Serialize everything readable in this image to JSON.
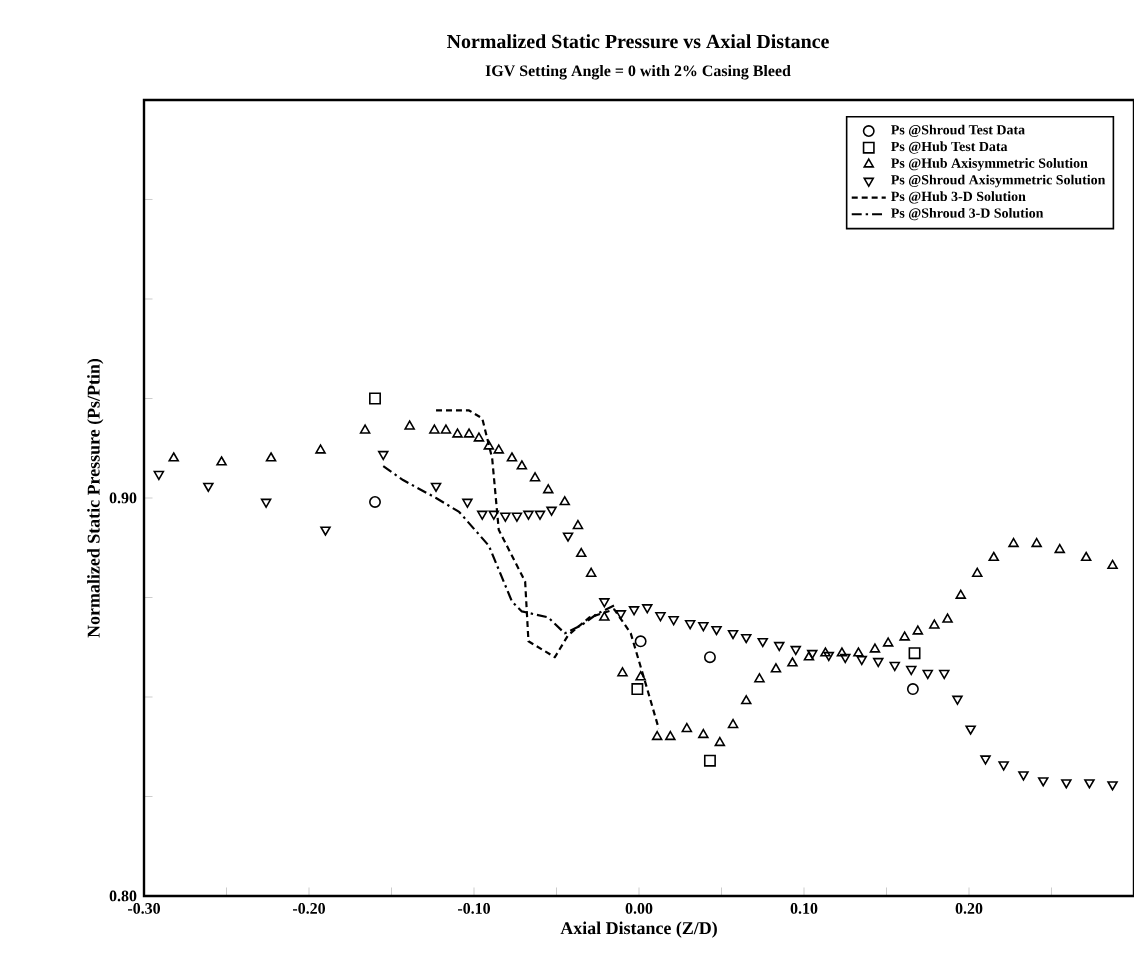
{
  "chart_data": {
    "type": "scatter",
    "title": "Normalized Static Pressure vs Axial Distance",
    "subtitle": "IGV Setting Angle = 0 with 2% Casing Bleed",
    "xlabel": "Axial Distance (Z/D)",
    "ylabel": "Normalized Static Pressure (Ps/Ptin)",
    "xlim": [
      -0.3,
      0.3
    ],
    "ylim": [
      0.8,
      1.0
    ],
    "xticks": [
      {
        "value": -0.3,
        "label": "-0.30"
      },
      {
        "value": -0.25,
        "label": null
      },
      {
        "value": -0.2,
        "label": "-0.20"
      },
      {
        "value": -0.15,
        "label": null
      },
      {
        "value": -0.1,
        "label": "-0.10"
      },
      {
        "value": -0.05,
        "label": null
      },
      {
        "value": 0.0,
        "label": "0.00"
      },
      {
        "value": 0.05,
        "label": null
      },
      {
        "value": 0.1,
        "label": "0.10"
      },
      {
        "value": 0.15,
        "label": null
      },
      {
        "value": 0.2,
        "label": "0.20"
      },
      {
        "value": 0.25,
        "label": null
      }
    ],
    "yticks": [
      {
        "value": 0.8,
        "label": "0.80"
      },
      {
        "value": 0.825,
        "label": null
      },
      {
        "value": 0.85,
        "label": null
      },
      {
        "value": 0.875,
        "label": null
      },
      {
        "value": 0.9,
        "label": "0.90"
      },
      {
        "value": 0.925,
        "label": null
      },
      {
        "value": 0.95,
        "label": null
      },
      {
        "value": 0.975,
        "label": null
      }
    ],
    "legend": "top right",
    "series": [
      {
        "name": "Ps @Shroud Test Data",
        "marker": "circle",
        "color": "#000000",
        "x": [
          -0.16,
          0.001,
          0.043,
          0.166
        ],
        "values": [
          0.899,
          0.864,
          0.86,
          0.852
        ]
      },
      {
        "name": "Ps @Hub Test Data",
        "marker": "square",
        "color": "#000000",
        "x": [
          -0.16,
          -0.001,
          0.043,
          0.167
        ],
        "values": [
          0.925,
          0.852,
          0.834,
          0.861
        ]
      },
      {
        "name": "Ps @Hub Axisymmetric Solution",
        "marker": "triangle",
        "color": "#000000",
        "x": [
          -0.282,
          -0.253,
          -0.223,
          -0.193,
          -0.166,
          -0.139,
          -0.124,
          -0.117,
          -0.11,
          -0.103,
          -0.097,
          -0.091,
          -0.085,
          -0.077,
          -0.071,
          -0.063,
          -0.055,
          -0.045,
          -0.037,
          -0.035,
          -0.029,
          -0.021,
          -0.01,
          0.001,
          0.011,
          0.019,
          0.029,
          0.039,
          0.049,
          0.057,
          0.065,
          0.073,
          0.083,
          0.093,
          0.103,
          0.113,
          0.123,
          0.133,
          0.143,
          0.151,
          0.161,
          0.169,
          0.179,
          0.187,
          0.195,
          0.205,
          0.215,
          0.227,
          0.241,
          0.255,
          0.271,
          0.287
        ],
        "values": [
          0.91,
          0.909,
          0.91,
          0.912,
          0.917,
          0.918,
          0.917,
          0.917,
          0.916,
          0.916,
          0.915,
          0.913,
          0.912,
          0.91,
          0.908,
          0.905,
          0.902,
          0.899,
          0.893,
          0.886,
          0.881,
          0.87,
          0.856,
          0.855,
          0.84,
          0.84,
          0.842,
          0.8405,
          0.8385,
          0.843,
          0.849,
          0.8545,
          0.857,
          0.8585,
          0.86,
          0.861,
          0.861,
          0.861,
          0.862,
          0.8635,
          0.865,
          0.8665,
          0.868,
          0.8695,
          0.8755,
          0.881,
          0.885,
          0.8885,
          0.8885,
          0.887,
          0.885,
          0.883
        ]
      },
      {
        "name": "Ps @Shroud Axisymmetric Solution",
        "marker": "triangle-down",
        "color": "#000000",
        "x": [
          -0.291,
          -0.261,
          -0.226,
          -0.19,
          -0.155,
          -0.123,
          -0.104,
          -0.095,
          -0.088,
          -0.081,
          -0.074,
          -0.067,
          -0.06,
          -0.053,
          -0.043,
          -0.021,
          -0.011,
          -0.003,
          0.005,
          0.013,
          0.021,
          0.031,
          0.039,
          0.047,
          0.057,
          0.065,
          0.075,
          0.085,
          0.095,
          0.105,
          0.115,
          0.125,
          0.135,
          0.145,
          0.155,
          0.165,
          0.175,
          0.185,
          0.193,
          0.201,
          0.21,
          0.221,
          0.233,
          0.245,
          0.259,
          0.273,
          0.287
        ],
        "values": [
          0.906,
          0.903,
          0.899,
          0.892,
          0.911,
          0.903,
          0.899,
          0.896,
          0.896,
          0.8955,
          0.8955,
          0.896,
          0.896,
          0.897,
          0.8905,
          0.874,
          0.871,
          0.872,
          0.8725,
          0.8705,
          0.8695,
          0.8685,
          0.868,
          0.867,
          0.866,
          0.865,
          0.864,
          0.863,
          0.862,
          0.861,
          0.8605,
          0.86,
          0.8595,
          0.859,
          0.858,
          0.857,
          0.856,
          0.856,
          0.8495,
          0.842,
          0.8345,
          0.833,
          0.8305,
          0.829,
          0.8285,
          0.8285,
          0.828
        ]
      },
      {
        "name": "Ps @Hub 3-D Solution",
        "type": "line",
        "line_style": "dashed",
        "color": "#000000",
        "x": [
          -0.123,
          -0.103,
          -0.095,
          -0.089,
          -0.085,
          -0.069,
          -0.067,
          -0.051,
          -0.043,
          -0.03,
          -0.015,
          -0.005,
          0.005,
          0.012
        ],
        "values": [
          0.922,
          0.922,
          0.92,
          0.91,
          0.892,
          0.879,
          0.864,
          0.86,
          0.8655,
          0.87,
          0.872,
          0.866,
          0.852,
          0.842
        ]
      },
      {
        "name": "Ps @Shroud 3-D Solution",
        "type": "line",
        "line_style": "dashdot",
        "color": "#000000",
        "x": [
          -0.155,
          -0.143,
          -0.123,
          -0.109,
          -0.091,
          -0.077,
          -0.071,
          -0.055,
          -0.045,
          -0.035,
          -0.025,
          -0.015
        ],
        "values": [
          0.908,
          0.9045,
          0.9,
          0.8965,
          0.888,
          0.874,
          0.8715,
          0.87,
          0.866,
          0.868,
          0.871,
          0.873
        ]
      }
    ]
  }
}
